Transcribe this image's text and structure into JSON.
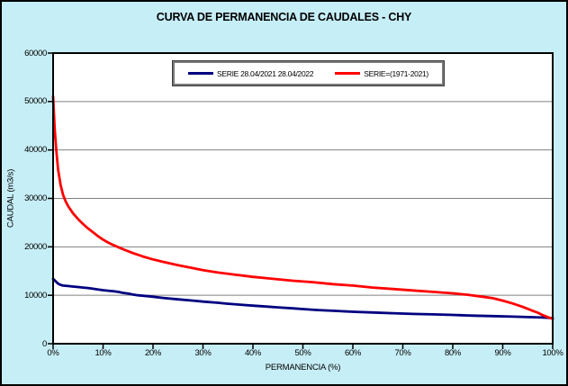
{
  "title": "CURVA DE PERMANENCIA DE CAUDALES - CHY",
  "chart_data": {
    "type": "line",
    "title": "CURVA DE PERMANENCIA DE CAUDALES - CHY",
    "xlabel": "PERMANENCIA (%)",
    "ylabel": "CAUDAL (m3/s)",
    "xlim": [
      0,
      100
    ],
    "ylim": [
      0,
      60000
    ],
    "x_ticks": [
      0,
      10,
      20,
      30,
      40,
      50,
      60,
      70,
      80,
      90,
      100
    ],
    "x_tick_labels": [
      "0%",
      "10%",
      "20%",
      "30%",
      "40%",
      "50%",
      "60%",
      "70%",
      "80%",
      "90%",
      "100%"
    ],
    "y_ticks": [
      0,
      10000,
      20000,
      30000,
      40000,
      50000,
      60000
    ],
    "y_tick_labels": [
      "0",
      "10000",
      "20000",
      "30000",
      "40000",
      "50000",
      "60000"
    ],
    "grid": "horizontal",
    "legend_position": "top-center-inside",
    "colors": {
      "background": "#C6EEF6",
      "plot_background": "#FFFFFF",
      "gridline": "#808080",
      "axis": "#000000",
      "series_blue": "#000080",
      "series_red": "#FF0000"
    },
    "series": [
      {
        "name": "SERIE 28.04/2021 28.04/2022",
        "color": "#000080",
        "points": [
          [
            0,
            13400
          ],
          [
            0.3,
            13100
          ],
          [
            0.6,
            12800
          ],
          [
            1,
            12400
          ],
          [
            1.5,
            12150
          ],
          [
            2,
            12000
          ],
          [
            3,
            11900
          ],
          [
            4,
            11800
          ],
          [
            5,
            11700
          ],
          [
            6,
            11600
          ],
          [
            7,
            11500
          ],
          [
            8,
            11350
          ],
          [
            9,
            11200
          ],
          [
            10,
            11050
          ],
          [
            11,
            10950
          ],
          [
            12,
            10850
          ],
          [
            13,
            10700
          ],
          [
            14,
            10500
          ],
          [
            15,
            10350
          ],
          [
            16,
            10150
          ],
          [
            17,
            10000
          ],
          [
            18,
            9900
          ],
          [
            19,
            9800
          ],
          [
            20,
            9700
          ],
          [
            22,
            9450
          ],
          [
            25,
            9150
          ],
          [
            28,
            8900
          ],
          [
            30,
            8700
          ],
          [
            33,
            8450
          ],
          [
            35,
            8250
          ],
          [
            38,
            8000
          ],
          [
            40,
            7850
          ],
          [
            43,
            7650
          ],
          [
            45,
            7500
          ],
          [
            48,
            7300
          ],
          [
            50,
            7150
          ],
          [
            53,
            6950
          ],
          [
            56,
            6800
          ],
          [
            60,
            6600
          ],
          [
            64,
            6450
          ],
          [
            68,
            6300
          ],
          [
            72,
            6150
          ],
          [
            76,
            6050
          ],
          [
            80,
            5950
          ],
          [
            84,
            5800
          ],
          [
            88,
            5700
          ],
          [
            92,
            5600
          ],
          [
            95,
            5500
          ],
          [
            98,
            5400
          ],
          [
            100,
            5300
          ]
        ]
      },
      {
        "name": "SERIE=(1971-2021)",
        "color": "#FF0000",
        "points": [
          [
            0,
            51000
          ],
          [
            0.3,
            44500
          ],
          [
            0.6,
            40500
          ],
          [
            1,
            36000
          ],
          [
            1.5,
            32800
          ],
          [
            2,
            30700
          ],
          [
            2.5,
            29400
          ],
          [
            3,
            28400
          ],
          [
            4,
            26900
          ],
          [
            5,
            25700
          ],
          [
            6,
            24700
          ],
          [
            7,
            23800
          ],
          [
            8,
            23000
          ],
          [
            9,
            22200
          ],
          [
            10,
            21500
          ],
          [
            11,
            20900
          ],
          [
            12,
            20400
          ],
          [
            14,
            19500
          ],
          [
            16,
            18700
          ],
          [
            18,
            18000
          ],
          [
            20,
            17400
          ],
          [
            22,
            16900
          ],
          [
            25,
            16200
          ],
          [
            28,
            15600
          ],
          [
            30,
            15200
          ],
          [
            33,
            14700
          ],
          [
            36,
            14300
          ],
          [
            40,
            13800
          ],
          [
            44,
            13400
          ],
          [
            48,
            13000
          ],
          [
            52,
            12700
          ],
          [
            56,
            12300
          ],
          [
            60,
            12000
          ],
          [
            64,
            11600
          ],
          [
            68,
            11300
          ],
          [
            72,
            11000
          ],
          [
            76,
            10700
          ],
          [
            80,
            10400
          ],
          [
            83,
            10100
          ],
          [
            86,
            9700
          ],
          [
            88,
            9400
          ],
          [
            90,
            8900
          ],
          [
            92,
            8300
          ],
          [
            94,
            7600
          ],
          [
            96,
            6800
          ],
          [
            97,
            6400
          ],
          [
            98,
            5900
          ],
          [
            99,
            5500
          ],
          [
            100,
            5100
          ]
        ]
      }
    ]
  }
}
